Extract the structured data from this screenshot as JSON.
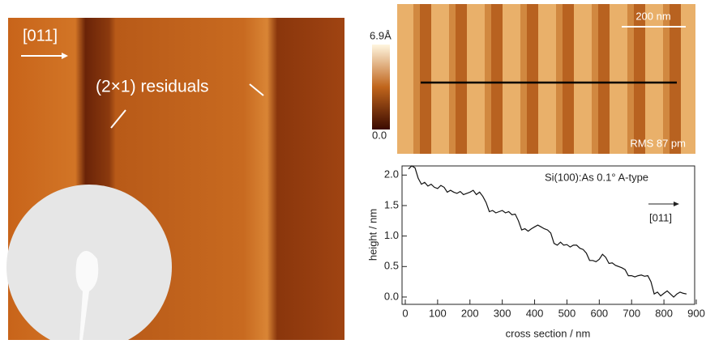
{
  "figure": {
    "direction_label": "[011]",
    "residuals_label": "(2×1) residuals",
    "colorbar_max": "6.9Å",
    "colorbar_min": "0.0",
    "scale_bar": "200 nm",
    "rms": "RMS 87 pm"
  },
  "chart_data": {
    "type": "line",
    "annotation": "Si(100):As 0.1° A-type",
    "direction": "[011]",
    "x_label": "cross section / nm",
    "y_label": "height / nm",
    "xlim": [
      -10,
      895
    ],
    "ylim": [
      -0.12,
      2.15
    ],
    "xticks": [
      0,
      100,
      200,
      300,
      400,
      500,
      600,
      700,
      800,
      900
    ],
    "yticks": [
      {
        "value": 0,
        "label": "0.0"
      },
      {
        "value": 0.5,
        "label": "0.5"
      },
      {
        "value": 1,
        "label": "1.0"
      },
      {
        "value": 1.5,
        "label": "1.5"
      },
      {
        "value": 2,
        "label": "2.0"
      }
    ],
    "series": [
      {
        "color": "#111111",
        "x": [
          10,
          20,
          30,
          40,
          50,
          60,
          70,
          80,
          90,
          100,
          110,
          120,
          130,
          140,
          150,
          160,
          170,
          180,
          190,
          200,
          210,
          220,
          230,
          240,
          250,
          260,
          270,
          280,
          290,
          300,
          310,
          320,
          330,
          340,
          350,
          360,
          370,
          380,
          390,
          400,
          410,
          420,
          430,
          440,
          450,
          460,
          470,
          480,
          490,
          500,
          510,
          520,
          530,
          540,
          550,
          560,
          570,
          580,
          590,
          600,
          610,
          620,
          630,
          640,
          650,
          660,
          670,
          680,
          690,
          700,
          710,
          720,
          730,
          740,
          750,
          760,
          770,
          780,
          790,
          800,
          810,
          820,
          830,
          840,
          850,
          860,
          870
        ],
        "values": [
          2.1,
          2.15,
          2.12,
          1.95,
          1.85,
          1.88,
          1.82,
          1.85,
          1.8,
          1.78,
          1.83,
          1.8,
          1.72,
          1.75,
          1.72,
          1.7,
          1.73,
          1.68,
          1.7,
          1.72,
          1.75,
          1.68,
          1.72,
          1.65,
          1.55,
          1.4,
          1.42,
          1.38,
          1.4,
          1.42,
          1.38,
          1.4,
          1.35,
          1.36,
          1.25,
          1.1,
          1.12,
          1.08,
          1.12,
          1.15,
          1.18,
          1.15,
          1.12,
          1.1,
          1.05,
          0.88,
          0.85,
          0.9,
          0.85,
          0.86,
          0.82,
          0.85,
          0.85,
          0.8,
          0.78,
          0.72,
          0.6,
          0.6,
          0.58,
          0.62,
          0.7,
          0.65,
          0.55,
          0.56,
          0.52,
          0.5,
          0.48,
          0.45,
          0.35,
          0.35,
          0.33,
          0.35,
          0.36,
          0.34,
          0.35,
          0.25,
          0.05,
          0.08,
          0.02,
          0.06,
          0.1,
          0.05,
          0,
          0.05,
          0.08,
          0.06,
          0.05
        ]
      }
    ]
  }
}
